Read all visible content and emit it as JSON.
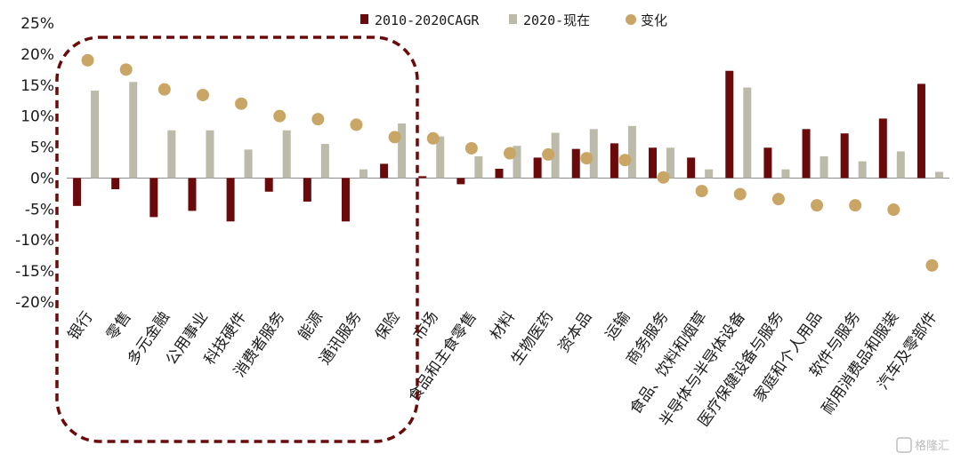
{
  "chart_data": {
    "type": "bar",
    "categories": [
      "银行",
      "零售",
      "多元金融",
      "公用事业",
      "科技硬件",
      "消费者服务",
      "能源",
      "通讯服务",
      "保险",
      "市场",
      "食品和主食零售",
      "材料",
      "生物医药",
      "资本品",
      "运输",
      "商务服务",
      "食品、饮料和烟草",
      "半导体与半导体设备",
      "医疗保健设备与服务",
      "家庭和个人用品",
      "软件与服务",
      "耐用消费品和服装",
      "汽车及零部件"
    ],
    "series": [
      {
        "name": "2010-2020CAGR",
        "kind": "bar",
        "color": "#6b0a0a",
        "values": [
          -4.5,
          -1.8,
          -6.3,
          -5.3,
          -7.0,
          -2.2,
          -3.8,
          -7.0,
          2.3,
          0.3,
          -1.0,
          1.5,
          3.3,
          4.7,
          5.6,
          4.9,
          3.3,
          17.3,
          4.9,
          7.9,
          7.2,
          9.6,
          15.2
        ]
      },
      {
        "name": "2020-现在",
        "kind": "bar",
        "color": "#bcbaa8",
        "values": [
          14.1,
          15.5,
          7.7,
          7.7,
          4.6,
          7.7,
          5.5,
          1.4,
          8.8,
          6.7,
          3.5,
          5.2,
          7.3,
          7.9,
          8.4,
          4.9,
          1.4,
          14.6,
          1.4,
          3.5,
          2.7,
          4.3,
          1.0
        ]
      },
      {
        "name": "变化",
        "kind": "dot",
        "color": "#c9a566",
        "values": [
          19.0,
          17.5,
          14.3,
          13.4,
          12.0,
          10.0,
          9.5,
          8.6,
          6.6,
          6.4,
          4.8,
          4.0,
          3.8,
          3.2,
          2.9,
          0.1,
          -2.1,
          -2.6,
          -3.4,
          -4.4,
          -4.4,
          -5.1,
          -14.1
        ]
      }
    ],
    "ylim": [
      -20,
      25
    ],
    "yticks": [
      "25%",
      "20%",
      "15%",
      "10%",
      "5%",
      "0%",
      "-5%",
      "-10%",
      "-15%",
      "-20%"
    ],
    "ytick_values": [
      25,
      20,
      15,
      10,
      5,
      0,
      -5,
      -10,
      -15,
      -20
    ],
    "legend_position": "top",
    "highlight_box_color": "#6b0a0a"
  },
  "watermark": "格隆汇"
}
